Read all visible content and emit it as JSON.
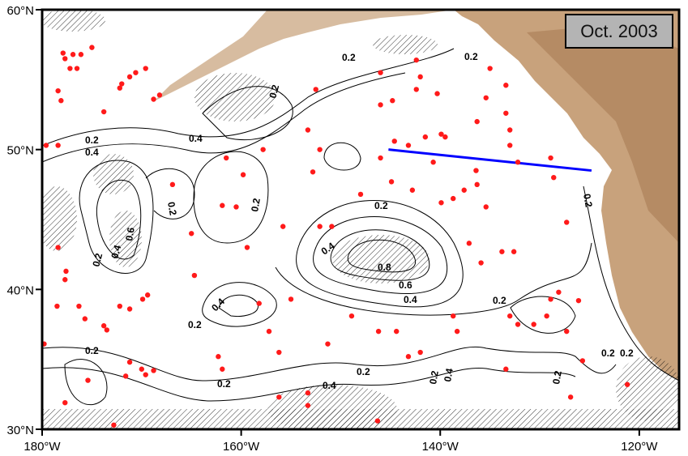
{
  "title_box": "Oct. 2003",
  "axes": {
    "x_ticks": [
      {
        "value": -180,
        "label": "180°W"
      },
      {
        "value": -160,
        "label": "160°W"
      },
      {
        "value": -140,
        "label": "140°W"
      },
      {
        "value": -120,
        "label": "120°W"
      }
    ],
    "y_ticks": [
      {
        "value": 30,
        "label": "30°N"
      },
      {
        "value": 40,
        "label": "40°N"
      },
      {
        "value": 50,
        "label": "50°N"
      },
      {
        "value": 60,
        "label": "60°N"
      }
    ],
    "lon_range": [
      -180,
      -116
    ],
    "lat_range": [
      30,
      60
    ]
  },
  "colors": {
    "dots": "#ff1a1a",
    "section_line": "#0000ff",
    "land": "#c8a27c",
    "contour": "#000000"
  },
  "contour_labels": [
    "0.2",
    "0.4",
    "0.2",
    "0.4",
    "0.2",
    "0.2",
    "0.2",
    "0.4",
    "0.6",
    "0.2",
    "0.4",
    "0.8",
    "0.6",
    "0.4",
    "0.2",
    "0.4",
    "0.2",
    "0.2",
    "0.2",
    "0.2",
    "0.4",
    "0.2",
    "0.2",
    "0.4",
    "0.2",
    "0.2",
    "0.2",
    "0.2",
    "0.2"
  ],
  "section_line": {
    "start": [
      -145.2,
      50.0
    ],
    "end": [
      -124.8,
      48.5
    ]
  },
  "float_positions": [
    [
      -177.9,
      56.9
    ],
    [
      -176.9,
      56.8
    ],
    [
      -176.1,
      56.8
    ],
    [
      -177.7,
      56.5
    ],
    [
      -177.2,
      55.8
    ],
    [
      -176.5,
      55.8
    ],
    [
      -175.0,
      57.3
    ],
    [
      -178.4,
      54.2
    ],
    [
      -178.1,
      53.5
    ],
    [
      -172.0,
      54.7
    ],
    [
      -171.2,
      55.2
    ],
    [
      -170.6,
      55.5
    ],
    [
      -169.6,
      55.8
    ],
    [
      -172.2,
      54.4
    ],
    [
      -168.8,
      53.6
    ],
    [
      -168.2,
      53.9
    ],
    [
      -173.8,
      52.7
    ],
    [
      -179.6,
      50.3
    ],
    [
      -178.4,
      50.3
    ],
    [
      -178.4,
      43.0
    ],
    [
      -177.6,
      41.3
    ],
    [
      -177.7,
      40.7
    ],
    [
      -178.5,
      38.8
    ],
    [
      -176.3,
      38.8
    ],
    [
      -175.7,
      37.9
    ],
    [
      -173.8,
      37.4
    ],
    [
      -173.5,
      37.1
    ],
    [
      -171.2,
      34.8
    ],
    [
      -170.0,
      34.3
    ],
    [
      -169.6,
      33.9
    ],
    [
      -168.8,
      34.2
    ],
    [
      -169.9,
      39.3
    ],
    [
      -169.4,
      39.6
    ],
    [
      -171.2,
      38.6
    ],
    [
      -172.2,
      38.8
    ],
    [
      -166.9,
      47.5
    ],
    [
      -165.0,
      44.0
    ],
    [
      -164.7,
      41.0
    ],
    [
      -161.9,
      46.0
    ],
    [
      -161.5,
      49.4
    ],
    [
      -160.5,
      45.9
    ],
    [
      -159.8,
      48.2
    ],
    [
      -157.8,
      50.0
    ],
    [
      -159.4,
      43.0
    ],
    [
      -161.9,
      34.3
    ],
    [
      -162.3,
      35.2
    ],
    [
      -158.2,
      39.0
    ],
    [
      -157.2,
      37.0
    ],
    [
      -156.2,
      35.5
    ],
    [
      -156.2,
      32.3
    ],
    [
      -155.0,
      39.3
    ],
    [
      -153.3,
      31.7
    ],
    [
      -152.8,
      48.4
    ],
    [
      -153.3,
      51.4
    ],
    [
      -152.1,
      50.0
    ],
    [
      -152.5,
      54.3
    ],
    [
      -152.1,
      44.5
    ],
    [
      -151.3,
      36.1
    ],
    [
      -148.9,
      38.1
    ],
    [
      -148.0,
      46.8
    ],
    [
      -146.0,
      55.5
    ],
    [
      -146.2,
      37.0
    ],
    [
      -144.4,
      37.0
    ],
    [
      -143.2,
      35.2
    ],
    [
      -146.3,
      30.6
    ],
    [
      -146.0,
      49.4
    ],
    [
      -146.0,
      53.2
    ],
    [
      -144.9,
      47.7
    ],
    [
      -144.6,
      50.6
    ],
    [
      -144.8,
      53.5
    ],
    [
      -143.2,
      50.3
    ],
    [
      -142.8,
      47.1
    ],
    [
      -142.4,
      56.4
    ],
    [
      -142.0,
      55.2
    ],
    [
      -142.4,
      54.3
    ],
    [
      -141.5,
      50.9
    ],
    [
      -140.7,
      49.1
    ],
    [
      -140.3,
      54.0
    ],
    [
      -139.9,
      51.1
    ],
    [
      -139.5,
      50.9
    ],
    [
      -139.9,
      46.2
    ],
    [
      -138.7,
      46.5
    ],
    [
      -138.7,
      38.1
    ],
    [
      -138.3,
      37.0
    ],
    [
      -137.6,
      47.1
    ],
    [
      -137.1,
      43.3
    ],
    [
      -136.3,
      52.0
    ],
    [
      -136.4,
      48.5
    ],
    [
      -136.3,
      47.5
    ],
    [
      -135.9,
      41.9
    ],
    [
      -135.4,
      45.9
    ],
    [
      -135.0,
      55.8
    ],
    [
      -135.4,
      53.7
    ],
    [
      -133.4,
      54.6
    ],
    [
      -133.4,
      52.6
    ],
    [
      -133.0,
      51.4
    ],
    [
      -133.0,
      50.3
    ],
    [
      -132.2,
      49.1
    ],
    [
      -128.9,
      49.4
    ],
    [
      -128.6,
      48.0
    ],
    [
      -127.3,
      44.8
    ],
    [
      -133.8,
      42.7
    ],
    [
      -132.6,
      42.7
    ],
    [
      -128.9,
      39.3
    ],
    [
      -128.1,
      39.8
    ],
    [
      -129.3,
      38.1
    ],
    [
      -132.2,
      37.5
    ],
    [
      -133.0,
      38.1
    ],
    [
      -133.4,
      34.3
    ],
    [
      -130.6,
      37.5
    ],
    [
      -127.3,
      37.0
    ],
    [
      -126.1,
      39.2
    ],
    [
      -125.7,
      34.9
    ],
    [
      -121.2,
      33.2
    ],
    [
      -126.9,
      32.3
    ],
    [
      -142.0,
      35.5
    ],
    [
      -150.9,
      44.5
    ],
    [
      -155.8,
      44.5
    ],
    [
      -172.8,
      30.3
    ],
    [
      -177.7,
      31.9
    ],
    [
      -179.8,
      36.1
    ],
    [
      -175.4,
      33.5
    ],
    [
      -171.6,
      33.8
    ],
    [
      -153.3,
      32.6
    ]
  ]
}
